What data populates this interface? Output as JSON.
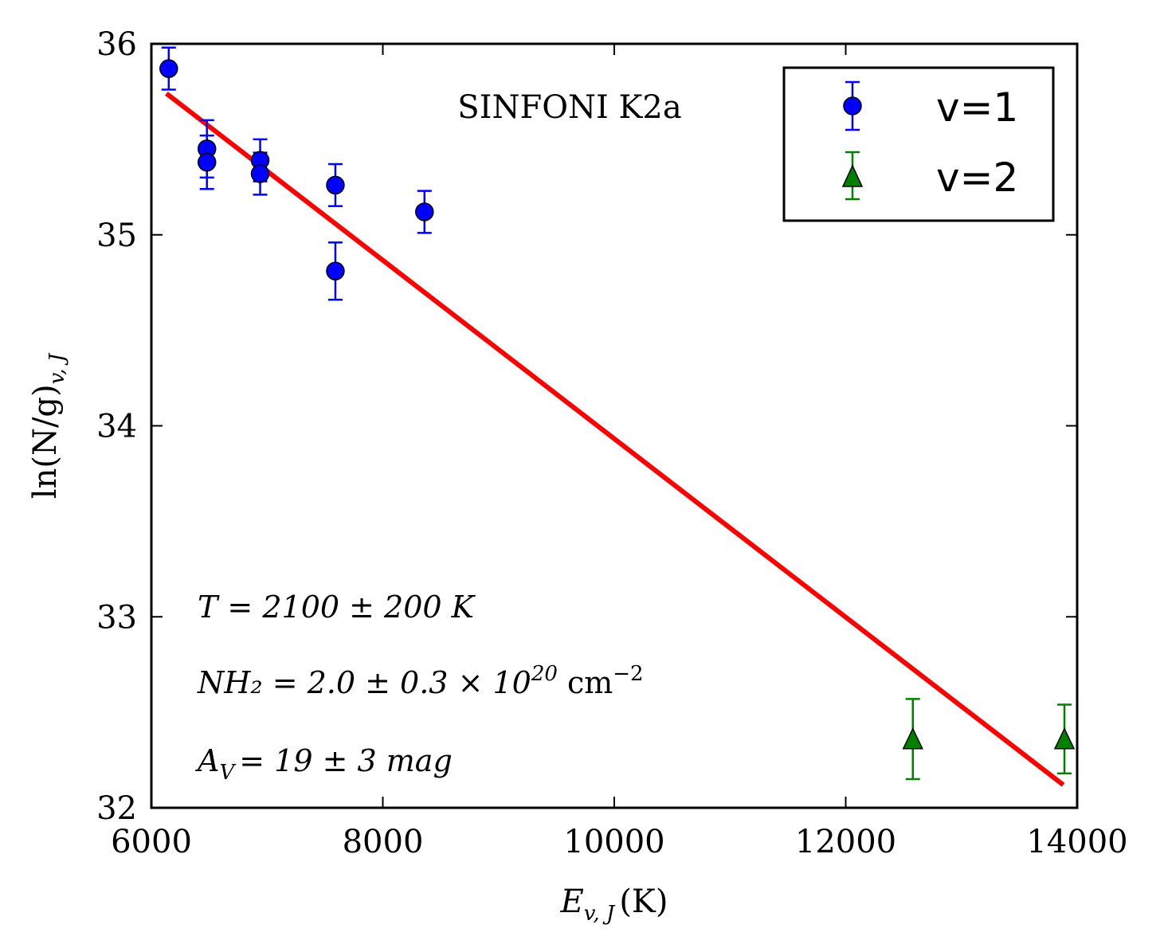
{
  "chart_data": {
    "type": "scatter",
    "title": "SINFONI K2a",
    "xlabel": "E_{v,J} (K)",
    "ylabel": "ln(N/g)_{v,J}",
    "xlim": [
      6000,
      14000
    ],
    "ylim": [
      32,
      36
    ],
    "xticks": [
      6000,
      8000,
      10000,
      12000,
      14000
    ],
    "yticks": [
      32,
      33,
      34,
      35,
      36
    ],
    "xtick_labels": [
      "6000",
      "8000",
      "10000",
      "12000",
      "14000"
    ],
    "ytick_labels": [
      "32",
      "33",
      "34",
      "35",
      "36"
    ],
    "legend_position": "top-right",
    "series": [
      {
        "name": "v=1",
        "marker": "circle",
        "color": "#0000ff",
        "points": [
          {
            "x": 6150,
            "y": 35.87,
            "err": 0.11
          },
          {
            "x": 6480,
            "y": 35.45,
            "err": 0.15
          },
          {
            "x": 6480,
            "y": 35.38,
            "err": 0.14
          },
          {
            "x": 6940,
            "y": 35.39,
            "err": 0.11
          },
          {
            "x": 6940,
            "y": 35.32,
            "err": 0.11
          },
          {
            "x": 7590,
            "y": 35.26,
            "err": 0.11
          },
          {
            "x": 7590,
            "y": 34.81,
            "err": 0.15
          },
          {
            "x": 8360,
            "y": 35.12,
            "err": 0.11
          }
        ]
      },
      {
        "name": "v=2",
        "marker": "triangle",
        "color": "#008000",
        "points": [
          {
            "x": 12580,
            "y": 32.36,
            "err": 0.21
          },
          {
            "x": 13890,
            "y": 32.36,
            "err": 0.18
          }
        ]
      }
    ],
    "fit_line": {
      "color": "#ff0000",
      "x": [
        6130,
        13880
      ],
      "y": [
        35.74,
        32.12
      ]
    },
    "annotations": [
      "T = 2100 ± 200 K",
      "NH₂ = 2.0 ± 0.3 × 10²⁰ cm⁻²",
      "A_V = 19 ± 3 mag"
    ]
  },
  "text": {
    "title": "SINFONI K2a",
    "xlabel_main": "E",
    "xlabel_sub": "v, J",
    "xlabel_unit": "(K)",
    "ylabel_main": "ln(N/g)",
    "ylabel_sub": "v, J",
    "annot_T": "T = 2100 ± 200 K",
    "annot_NH2_main": "NH₂ = 2.0 ± 0.3 × 10",
    "annot_NH2_exp": "20",
    "annot_NH2_unit": "cm",
    "annot_NH2_unit_exp": "−2",
    "annot_AV_main": "A",
    "annot_AV_sub": "V",
    "annot_AV_rest": "= 19 ± 3 mag",
    "legend_v1": "v=1",
    "legend_v2": "v=2"
  }
}
